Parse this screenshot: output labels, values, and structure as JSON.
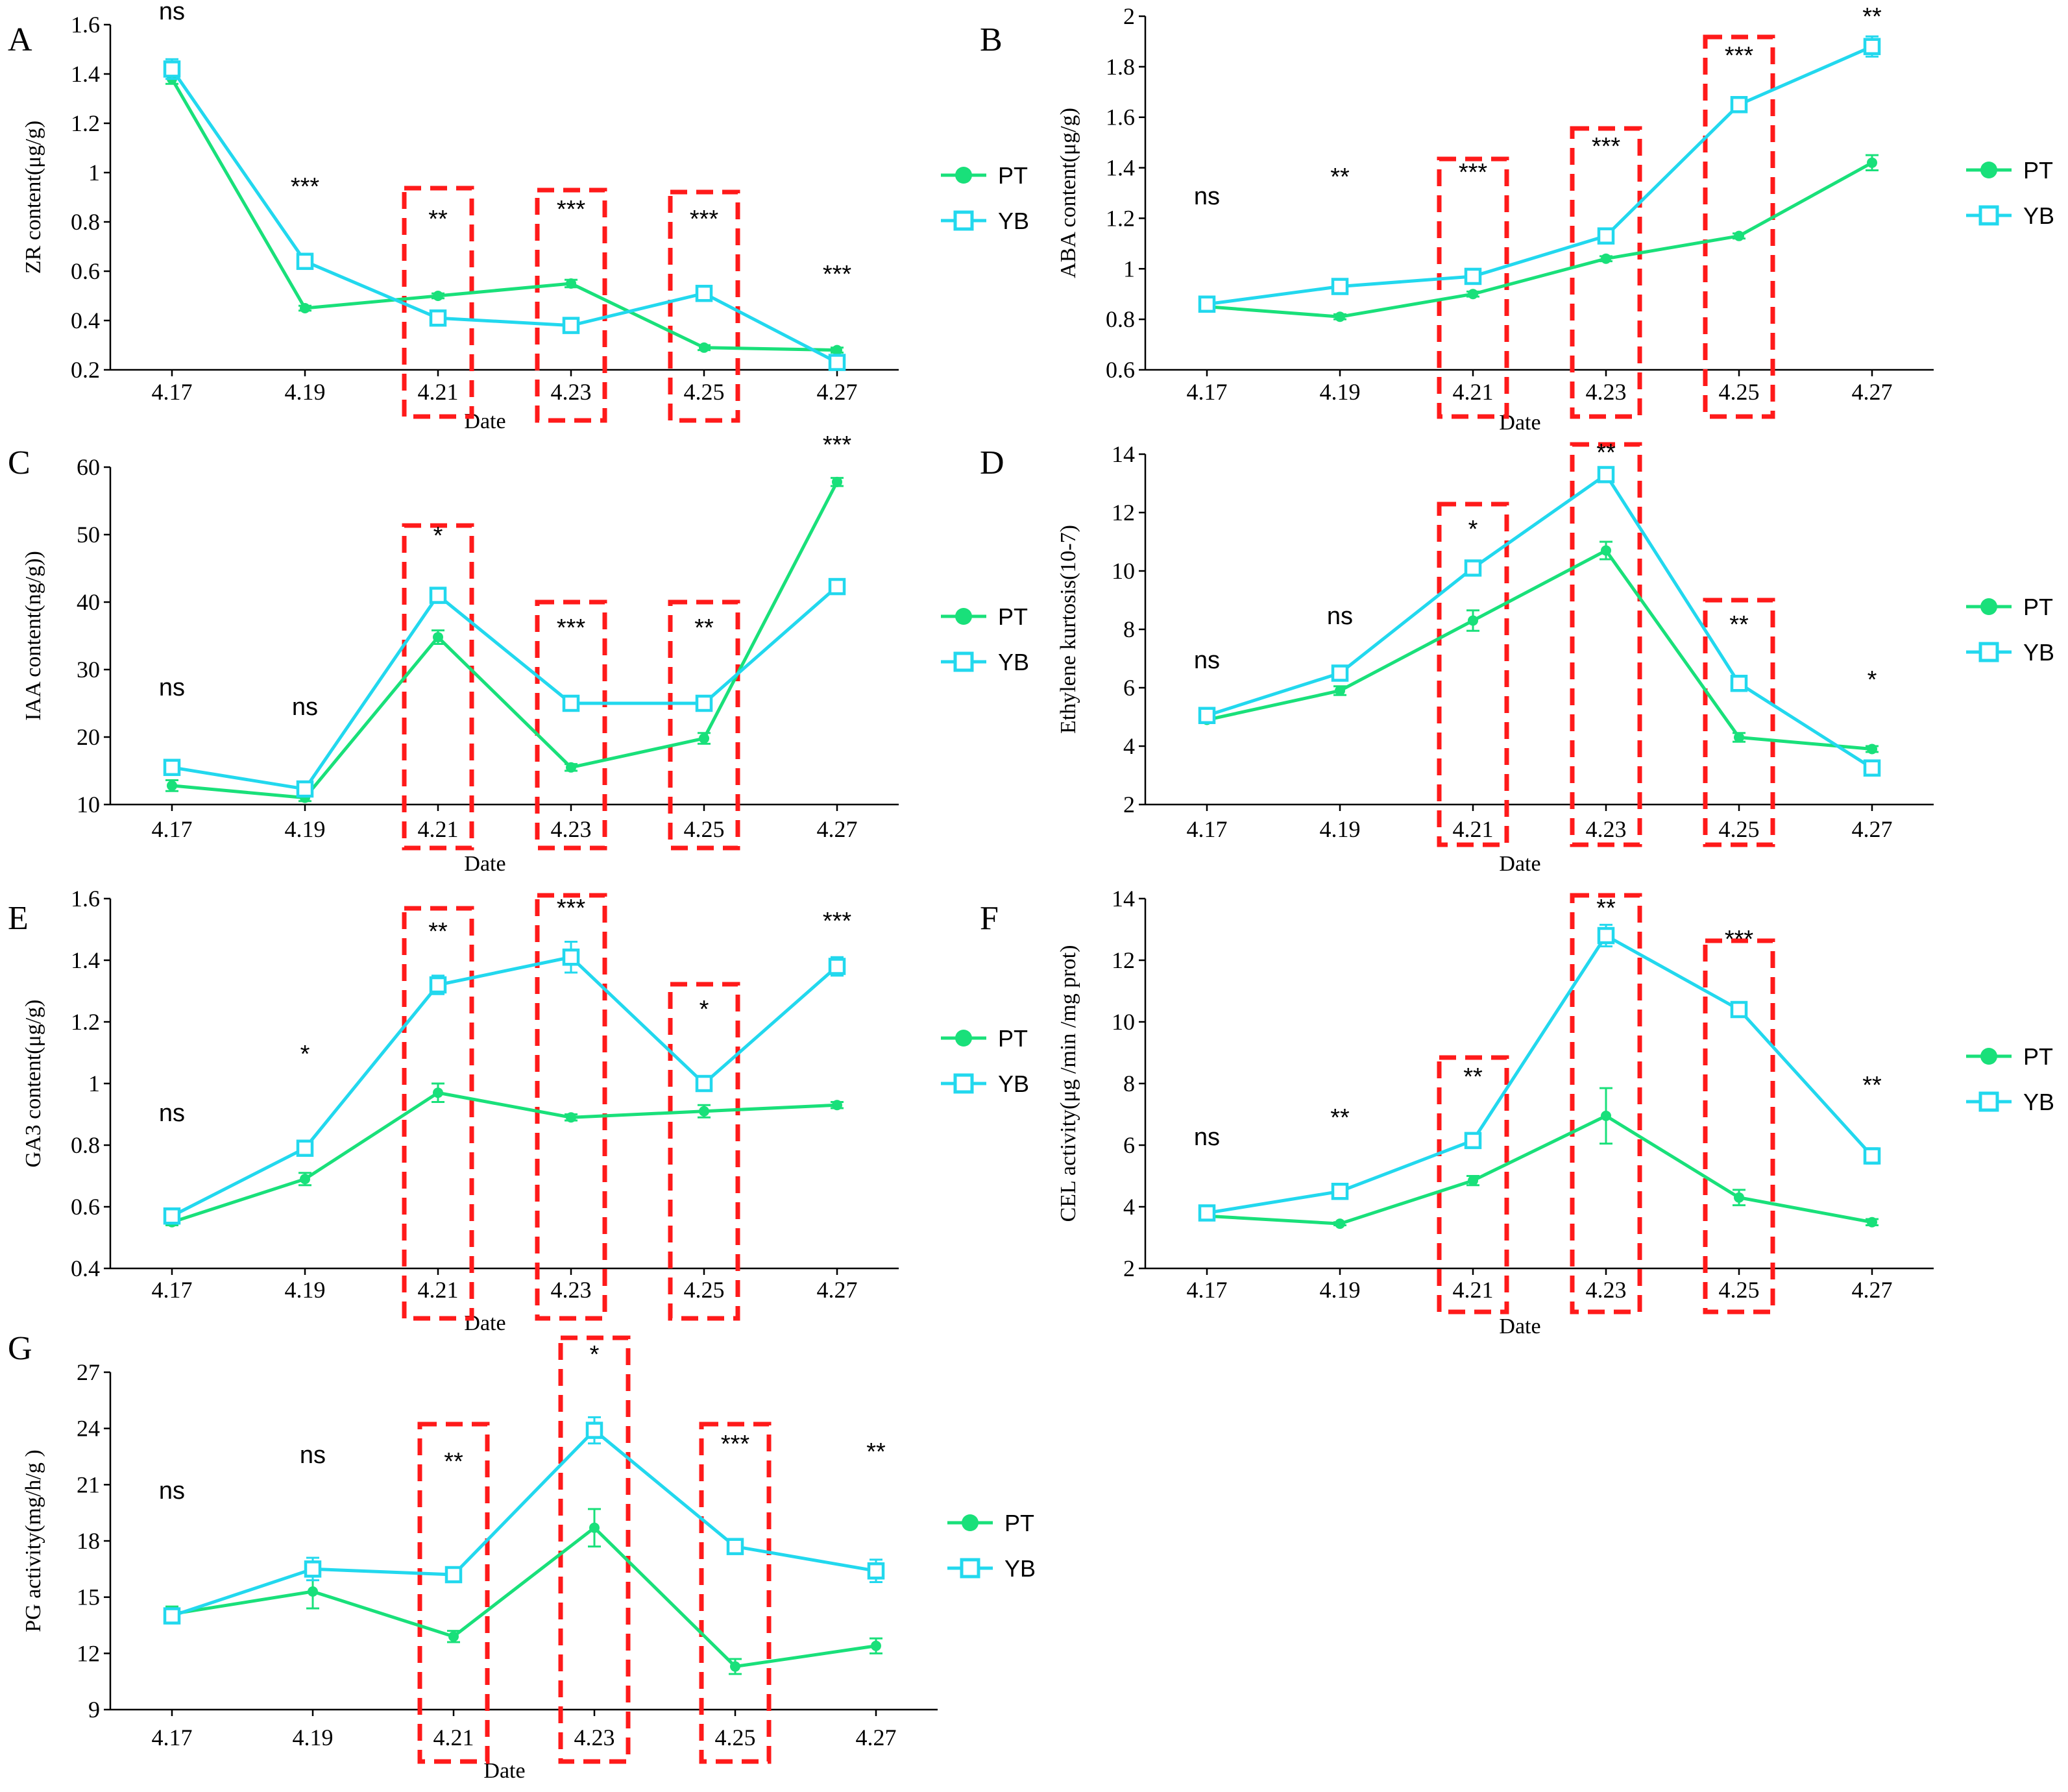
{
  "colors": {
    "PT": "#19e07a",
    "YB": "#22d8ee",
    "highlight": "#ff1a1a"
  },
  "chart_data": [
    {
      "type": "line",
      "letter": "A",
      "title": "",
      "xlabel": "Date",
      "ylabel": "ZR content(μg/g)",
      "ylim": [
        0.2,
        1.6
      ],
      "yticks": [
        "0.2",
        "0.4",
        "0.6",
        "0.8",
        "1",
        "1.2",
        "1.4",
        "1.6"
      ],
      "categories": [
        "4.17",
        "4.19",
        "4.21",
        "4.23",
        "4.25",
        "4.27"
      ],
      "series": [
        {
          "name": "PT",
          "marker": "filled-circle",
          "values": [
            1.38,
            0.45,
            0.5,
            0.55,
            0.29,
            0.28
          ],
          "errors": [
            0.02,
            0.01,
            0.01,
            0.015,
            0.01,
            0.01
          ]
        },
        {
          "name": "YB",
          "marker": "open-square",
          "values": [
            1.42,
            0.64,
            0.41,
            0.38,
            0.51,
            0.23
          ],
          "errors": [
            0.04,
            0.01,
            0.01,
            0.01,
            0.01,
            0.01
          ]
        }
      ],
      "significance": [
        "ns",
        "***",
        "**",
        "***",
        "***",
        "***"
      ],
      "highlighted": [
        "4.21",
        "4.23",
        "4.25"
      ],
      "legend": [
        "PT",
        "YB"
      ]
    },
    {
      "type": "line",
      "letter": "B",
      "title": "",
      "xlabel": "Date",
      "ylabel": "ABA content(μg/g)",
      "ylim": [
        0.6,
        2.0
      ],
      "yticks": [
        "0.6",
        "0.8",
        "1",
        "1.2",
        "1.4",
        "1.6",
        "1.8",
        "2"
      ],
      "categories": [
        "4.17",
        "4.19",
        "4.21",
        "4.23",
        "4.25",
        "4.27"
      ],
      "series": [
        {
          "name": "PT",
          "marker": "filled-circle",
          "values": [
            0.85,
            0.81,
            0.9,
            1.04,
            1.13,
            1.42
          ],
          "errors": [
            0.01,
            0.01,
            0.01,
            0.01,
            0.01,
            0.03
          ]
        },
        {
          "name": "YB",
          "marker": "open-square",
          "values": [
            0.86,
            0.93,
            0.97,
            1.13,
            1.65,
            1.88
          ],
          "errors": [
            0.01,
            0.01,
            0.01,
            0.01,
            0.01,
            0.04
          ]
        }
      ],
      "significance": [
        "ns",
        "**",
        "***",
        "***",
        "***",
        "**"
      ],
      "highlighted": [
        "4.21",
        "4.23",
        "4.25"
      ],
      "legend": [
        "PT",
        "YB"
      ]
    },
    {
      "type": "line",
      "letter": "C",
      "title": "",
      "xlabel": "Date",
      "ylabel": "IAA content(ng/g))",
      "ylim": [
        10,
        60
      ],
      "yticks": [
        "10",
        "20",
        "30",
        "40",
        "50",
        "60"
      ],
      "categories": [
        "4.17",
        "4.19",
        "4.21",
        "4.23",
        "4.25",
        "4.27"
      ],
      "series": [
        {
          "name": "PT",
          "marker": "filled-circle",
          "values": [
            12.8,
            11.0,
            34.8,
            15.5,
            19.8,
            57.8
          ],
          "errors": [
            0.8,
            0.5,
            1.0,
            0.5,
            0.8,
            0.6
          ]
        },
        {
          "name": "YB",
          "marker": "open-square",
          "values": [
            15.5,
            12.3,
            41.0,
            25.0,
            25.0,
            42.3
          ],
          "errors": [
            0.5,
            0.5,
            0.8,
            0.4,
            0.4,
            0.8
          ]
        }
      ],
      "significance": [
        "ns",
        "ns",
        "*",
        "***",
        "**",
        "***"
      ],
      "highlighted": [
        "4.21",
        "4.23",
        "4.25"
      ],
      "legend": [
        "PT",
        "YB"
      ]
    },
    {
      "type": "line",
      "letter": "D",
      "title": "",
      "xlabel": "Date",
      "ylabel": "Ethylene kurtosis(10-7)",
      "ylim": [
        2,
        14
      ],
      "yticks": [
        "2",
        "4",
        "6",
        "8",
        "10",
        "12",
        "14"
      ],
      "categories": [
        "4.17",
        "4.19",
        "4.21",
        "4.23",
        "4.25",
        "4.27"
      ],
      "series": [
        {
          "name": "PT",
          "marker": "filled-circle",
          "values": [
            4.9,
            5.9,
            8.3,
            10.7,
            4.3,
            3.9
          ],
          "errors": [
            0.1,
            0.15,
            0.35,
            0.3,
            0.15,
            0.1
          ]
        },
        {
          "name": "YB",
          "marker": "open-square",
          "values": [
            5.05,
            6.5,
            10.1,
            13.3,
            6.15,
            3.25
          ],
          "errors": [
            0.1,
            0.15,
            0.2,
            0.25,
            0.15,
            0.1
          ]
        }
      ],
      "significance": [
        "ns",
        "ns",
        "*",
        "**",
        "**",
        "*"
      ],
      "highlighted": [
        "4.21",
        "4.23",
        "4.25"
      ],
      "legend": [
        "PT",
        "YB"
      ]
    },
    {
      "type": "line",
      "letter": "E",
      "title": "",
      "xlabel": "Date",
      "ylabel": "GA3 content(μg/g)",
      "ylim": [
        0.4,
        1.6
      ],
      "yticks": [
        "0.4",
        "0.6",
        "0.8",
        "1",
        "1.2",
        "1.4",
        "1.6"
      ],
      "categories": [
        "4.17",
        "4.19",
        "4.21",
        "4.23",
        "4.25",
        "4.27"
      ],
      "series": [
        {
          "name": "PT",
          "marker": "filled-circle",
          "values": [
            0.55,
            0.69,
            0.97,
            0.89,
            0.91,
            0.93
          ],
          "errors": [
            0.01,
            0.02,
            0.03,
            0.01,
            0.02,
            0.01
          ]
        },
        {
          "name": "YB",
          "marker": "open-square",
          "values": [
            0.57,
            0.79,
            1.32,
            1.41,
            1.0,
            1.38
          ],
          "errors": [
            0.01,
            0.01,
            0.03,
            0.05,
            0.01,
            0.03
          ]
        }
      ],
      "significance": [
        "ns",
        "*",
        "**",
        "***",
        "*",
        "***"
      ],
      "highlighted": [
        "4.21",
        "4.23",
        "4.25"
      ],
      "legend": [
        "PT",
        "YB"
      ]
    },
    {
      "type": "line",
      "letter": "F",
      "title": "",
      "xlabel": "Date",
      "ylabel": "CEL activity(μg /min /mg prot)",
      "ylim": [
        2,
        14
      ],
      "yticks": [
        "2",
        "4",
        "6",
        "8",
        "10",
        "12",
        "14"
      ],
      "categories": [
        "4.17",
        "4.19",
        "4.21",
        "4.23",
        "4.25",
        "4.27"
      ],
      "series": [
        {
          "name": "PT",
          "marker": "filled-circle",
          "values": [
            3.7,
            3.45,
            4.85,
            6.95,
            4.3,
            3.5
          ],
          "errors": [
            0.1,
            0.05,
            0.15,
            0.9,
            0.25,
            0.1
          ]
        },
        {
          "name": "YB",
          "marker": "open-square",
          "values": [
            3.8,
            4.5,
            6.15,
            12.8,
            10.4,
            5.65
          ],
          "errors": [
            0.1,
            0.1,
            0.15,
            0.35,
            0.15,
            0.25
          ]
        }
      ],
      "significance": [
        "ns",
        "**",
        "**",
        "**",
        "***",
        "**"
      ],
      "highlighted": [
        "4.21",
        "4.23",
        "4.25"
      ],
      "legend": [
        "PT",
        "YB"
      ]
    },
    {
      "type": "line",
      "letter": "G",
      "title": "",
      "xlabel": "Date",
      "ylabel": "PG activity(mg/h/g )",
      "ylim": [
        9,
        27
      ],
      "yticks": [
        "9",
        "12",
        "15",
        "18",
        "21",
        "24",
        "27"
      ],
      "categories": [
        "4.17",
        "4.19",
        "4.21",
        "4.23",
        "4.25",
        "4.27"
      ],
      "series": [
        {
          "name": "PT",
          "marker": "filled-circle",
          "values": [
            14.1,
            15.3,
            12.9,
            18.7,
            11.3,
            12.4
          ],
          "errors": [
            0.4,
            0.9,
            0.3,
            1.0,
            0.4,
            0.4
          ]
        },
        {
          "name": "YB",
          "marker": "open-square",
          "values": [
            14.0,
            16.5,
            16.2,
            23.9,
            17.7,
            16.4
          ],
          "errors": [
            0.4,
            0.6,
            0.3,
            0.7,
            0.2,
            0.6
          ]
        }
      ],
      "significance": [
        "ns",
        "ns",
        "**",
        "*",
        "***",
        "**"
      ],
      "highlighted": [
        "4.21",
        "4.23",
        "4.25"
      ],
      "legend": [
        "PT",
        "YB"
      ]
    }
  ]
}
